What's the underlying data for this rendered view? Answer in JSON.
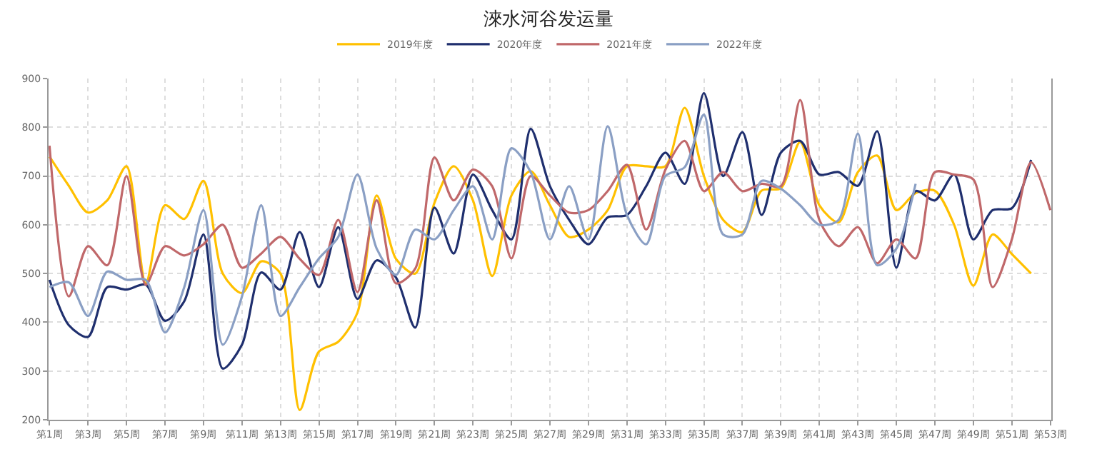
{
  "chart_data": {
    "type": "line",
    "title": "淶水河谷发运量",
    "categories": [
      "第1周",
      null,
      "第3周",
      null,
      "第5周",
      null,
      "第7周",
      null,
      "第9周",
      null,
      "第11周",
      null,
      "第13周",
      null,
      "第15周",
      null,
      "第17周",
      null,
      "第19周",
      null,
      "第21周",
      null,
      "第23周",
      null,
      "第25周",
      null,
      "第27周",
      null,
      "第29周",
      null,
      "第31周",
      null,
      "第33周",
      null,
      "第35周",
      null,
      "第37周",
      null,
      "第39周",
      null,
      "第41周",
      null,
      "第43周",
      null,
      "第45周",
      null,
      "第47周",
      null,
      "第49周",
      null,
      "第51周",
      null,
      "第53周"
    ],
    "series": [
      {
        "name": "2019年度",
        "color": "#ffc000",
        "values": [
          740,
          680,
          625,
          650,
          720,
          480,
          640,
          612,
          690,
          500,
          460,
          525,
          500,
          220,
          340,
          360,
          420,
          660,
          530,
          500,
          645,
          720,
          650,
          495,
          660,
          710,
          640,
          575,
          590,
          630,
          720,
          720,
          720,
          840,
          700,
          610,
          585,
          670,
          675,
          770,
          640,
          605,
          708,
          742,
          630,
          665,
          670,
          600,
          475,
          580,
          540,
          500,
          null
        ]
      },
      {
        "name": "2020年度",
        "color": "#1f2f6e",
        "values": [
          487,
          394,
          370,
          472,
          467,
          477,
          403,
          443,
          580,
          305,
          354,
          502,
          467,
          585,
          472,
          595,
          448,
          527,
          492,
          389,
          635,
          541,
          703,
          630,
          570,
          797,
          679,
          610,
          560,
          615,
          620,
          679,
          748,
          684,
          870,
          700,
          790,
          620,
          748,
          772,
          703,
          708,
          680,
          792,
          512,
          669,
          650,
          703,
          570,
          630,
          634,
          733,
          null
        ]
      },
      {
        "name": "2021年度",
        "color": "#c0686a",
        "values": [
          762,
          453,
          556,
          517,
          700,
          477,
          556,
          537,
          560,
          600,
          512,
          541,
          575,
          530,
          497,
          610,
          462,
          650,
          480,
          510,
          738,
          650,
          713,
          679,
          531,
          700,
          660,
          625,
          630,
          669,
          723,
          590,
          713,
          772,
          669,
          708,
          669,
          684,
          679,
          856,
          610,
          556,
          595,
          521,
          570,
          531,
          708,
          703,
          693,
          472,
          570,
          728,
          630
        ]
      },
      {
        "name": "2022年度",
        "color": "#8a9fc4",
        "values": [
          472,
          482,
          413,
          504,
          487,
          487,
          379,
          472,
          630,
          354,
          453,
          640,
          413,
          472,
          531,
          575,
          703,
          551,
          497,
          590,
          570,
          630,
          679,
          570,
          757,
          708,
          570,
          679,
          570,
          802,
          620,
          560,
          700,
          718,
          826,
          580,
          580,
          690,
          674,
          640,
          600,
          610,
          787,
          517,
          551,
          684,
          null,
          null,
          null,
          null,
          null,
          null,
          null
        ]
      }
    ],
    "ylim": [
      200,
      900
    ],
    "yticks": [
      200,
      300,
      400,
      500,
      600,
      700,
      800,
      900
    ],
    "grid": true,
    "legend": "top",
    "marker": "none",
    "line_style": "solid"
  }
}
